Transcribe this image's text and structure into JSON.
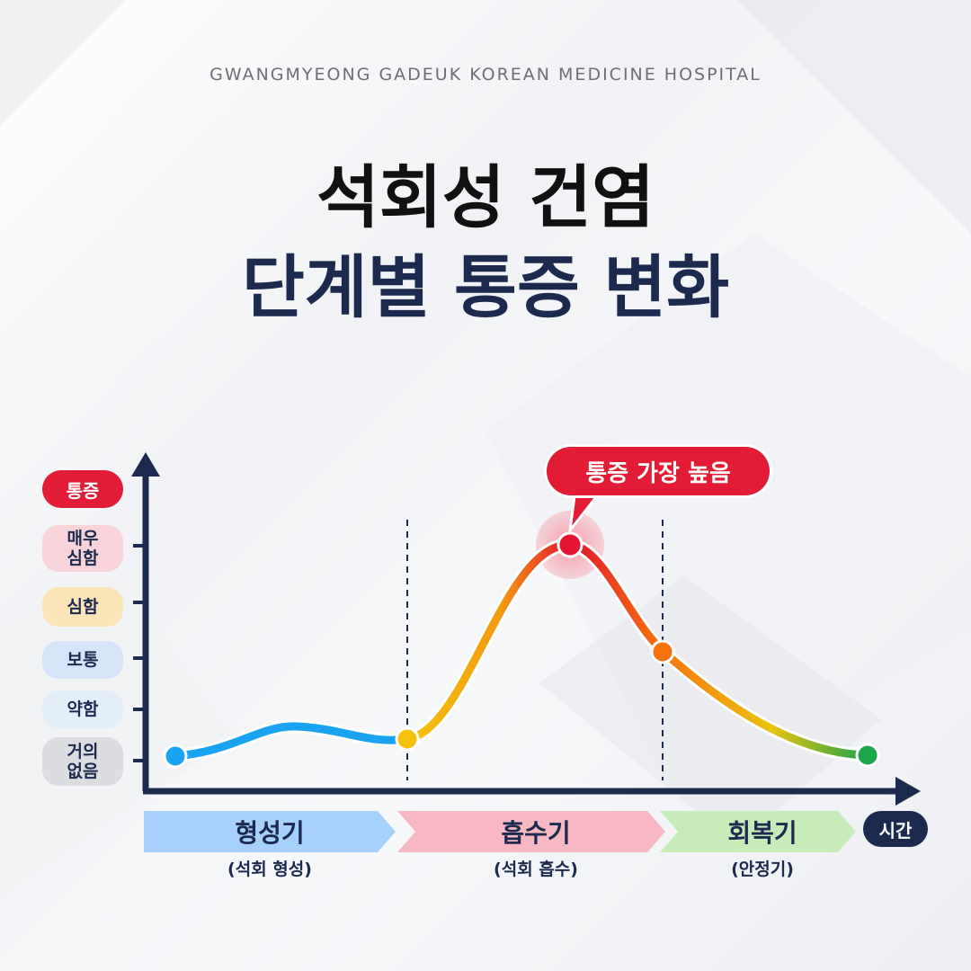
{
  "header": {
    "hospital_name": "GWANGMYEONG GADEUK KOREAN MEDICINE HOSPITAL",
    "title_line1": "석회성 건염",
    "title_line2": "단계별 통증 변화"
  },
  "diagram": {
    "y_axis_label": "통증",
    "x_axis_label": "시간",
    "pain_levels": [
      {
        "line1": "매우",
        "line2": "심함",
        "color": "#f9d3da"
      },
      {
        "line1": "심함",
        "line2": "",
        "color": "#fbe4b8"
      },
      {
        "line1": "보통",
        "line2": "",
        "color": "#d6e4fa"
      },
      {
        "line1": "약함",
        "line2": "",
        "color": "#e3eef9"
      },
      {
        "line1": "거의",
        "line2": "없음",
        "color": "#dcdde1"
      }
    ],
    "peak_callout": "통증 가장 높음",
    "phases": [
      {
        "name": "형성기",
        "sub": "(석회 형성)",
        "color": "#a7d0fb"
      },
      {
        "name": "흡수기",
        "sub": "(석회 흡수)",
        "color": "#f7b8c3"
      },
      {
        "name": "회복기",
        "sub": "(안정기)",
        "color": "#c6ecb9"
      }
    ],
    "colors": {
      "axis": "#1b2a4e",
      "low": "#1aa3f0",
      "mid": "#f4c20d",
      "high": "#e4132f",
      "falling": "#f5730f",
      "recovered": "#1ea44a"
    }
  }
}
